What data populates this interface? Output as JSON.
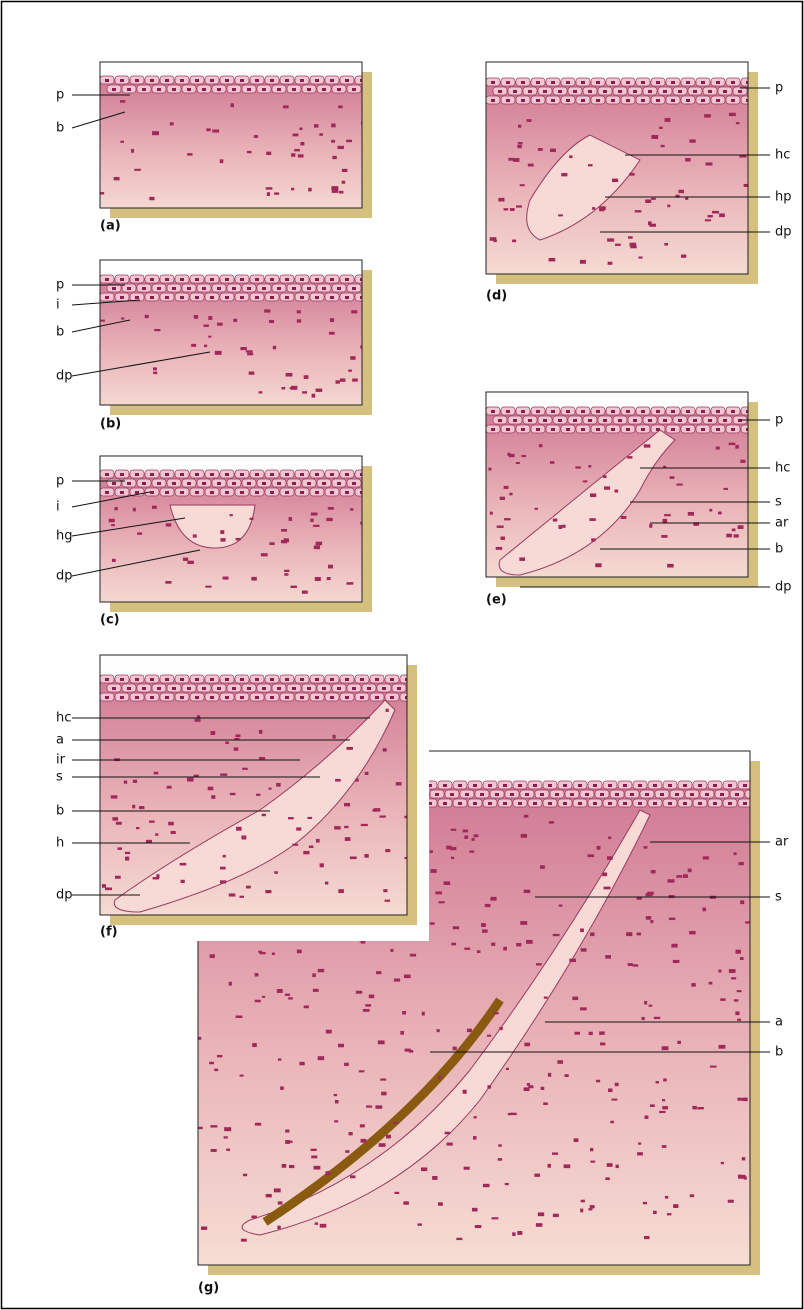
{
  "panels": [
    {
      "caption": "(a)",
      "labels": [
        "p",
        "b"
      ]
    },
    {
      "caption": "(b)",
      "labels": [
        "p",
        "i",
        "b",
        "dp"
      ]
    },
    {
      "caption": "(c)",
      "labels": [
        "p",
        "i",
        "hg",
        "dp"
      ]
    },
    {
      "caption": "(d)",
      "labels": [
        "p",
        "hc",
        "hp",
        "dp"
      ]
    },
    {
      "caption": "(e)",
      "labels": [
        "p",
        "hc",
        "s",
        "ar",
        "b",
        "dp"
      ]
    },
    {
      "caption": "(g)",
      "labels": [
        "ar",
        "s",
        "a",
        "b"
      ]
    },
    {
      "caption": "(f)",
      "labels": [
        "hc",
        "a",
        "ir",
        "s",
        "b",
        "h",
        "dp"
      ]
    }
  ]
}
